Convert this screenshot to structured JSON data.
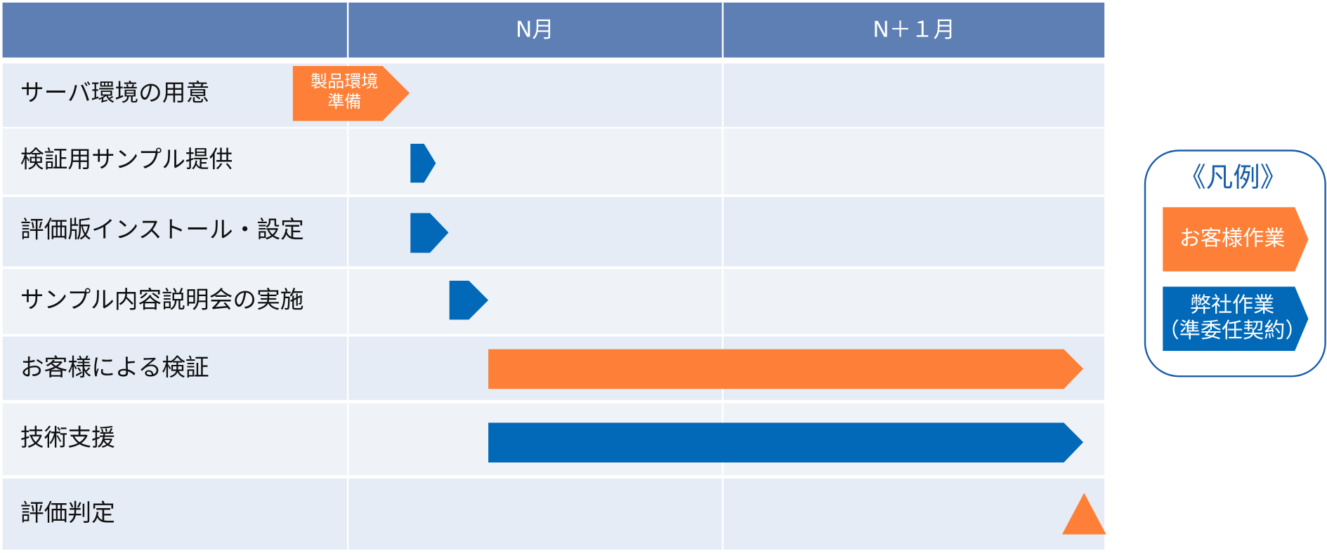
{
  "header": {
    "columns": [
      "N月",
      "N＋１月"
    ]
  },
  "rows": [
    {
      "label": "サーバ環境の用意",
      "task_lines": [
        "製品環境",
        "準備"
      ]
    },
    {
      "label": "検証用サンプル提供"
    },
    {
      "label": "評価版インストール・設定"
    },
    {
      "label": "サンプル内容説明会の実施"
    },
    {
      "label": "お客様による検証"
    },
    {
      "label": "技術支援"
    },
    {
      "label": "評価判定"
    }
  ],
  "legend": {
    "title": "《凡例》",
    "items": [
      {
        "lines": [
          "お客様作業"
        ]
      },
      {
        "lines": [
          "弊社作業",
          "（準委任契約）"
        ]
      }
    ]
  }
}
